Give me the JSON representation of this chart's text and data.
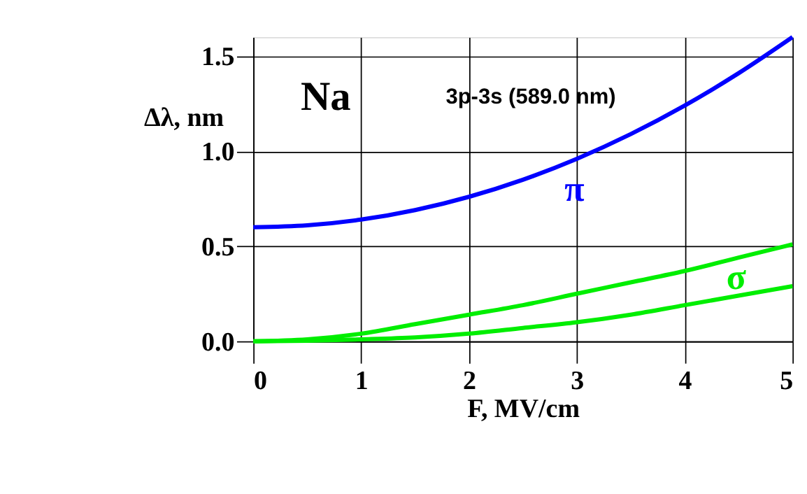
{
  "chart_data": {
    "type": "line",
    "xlabel": "F, MV/cm",
    "ylabel": "Δλ, nm",
    "annotations": [
      "Na",
      "3p-3s (589.0 nm)"
    ],
    "x": [
      0,
      0.5,
      1,
      1.5,
      2,
      2.5,
      3,
      3.5,
      4,
      4.5,
      5
    ],
    "series": [
      {
        "name": "π",
        "color": "#0000ff",
        "values": [
          0.6,
          0.61,
          0.64,
          0.69,
          0.76,
          0.85,
          0.96,
          1.09,
          1.24,
          1.41,
          1.6
        ]
      },
      {
        "name": "σ",
        "color": "#00ee00",
        "values": [
          0,
          0.01,
          0.04,
          0.09,
          0.14,
          0.19,
          0.25,
          0.31,
          0.37,
          0.44,
          0.51
        ]
      },
      {
        "color": "#00ee00",
        "values": [
          0,
          0.003,
          0.01,
          0.02,
          0.04,
          0.07,
          0.1,
          0.14,
          0.19,
          0.24,
          0.29
        ]
      }
    ],
    "xlim": [
      0,
      5
    ],
    "ylim": [
      0,
      1.6
    ],
    "xticks": [
      0,
      1,
      2,
      3,
      4,
      5
    ],
    "yticks": [
      {
        "value": 0,
        "label": "0.0"
      },
      {
        "value": 0.5,
        "label": "0.5"
      },
      {
        "value": 1,
        "label": "1.0"
      },
      {
        "value": 1.5,
        "label": "1.5"
      }
    ],
    "grid": true,
    "marker": "none",
    "line_style": "solid"
  }
}
